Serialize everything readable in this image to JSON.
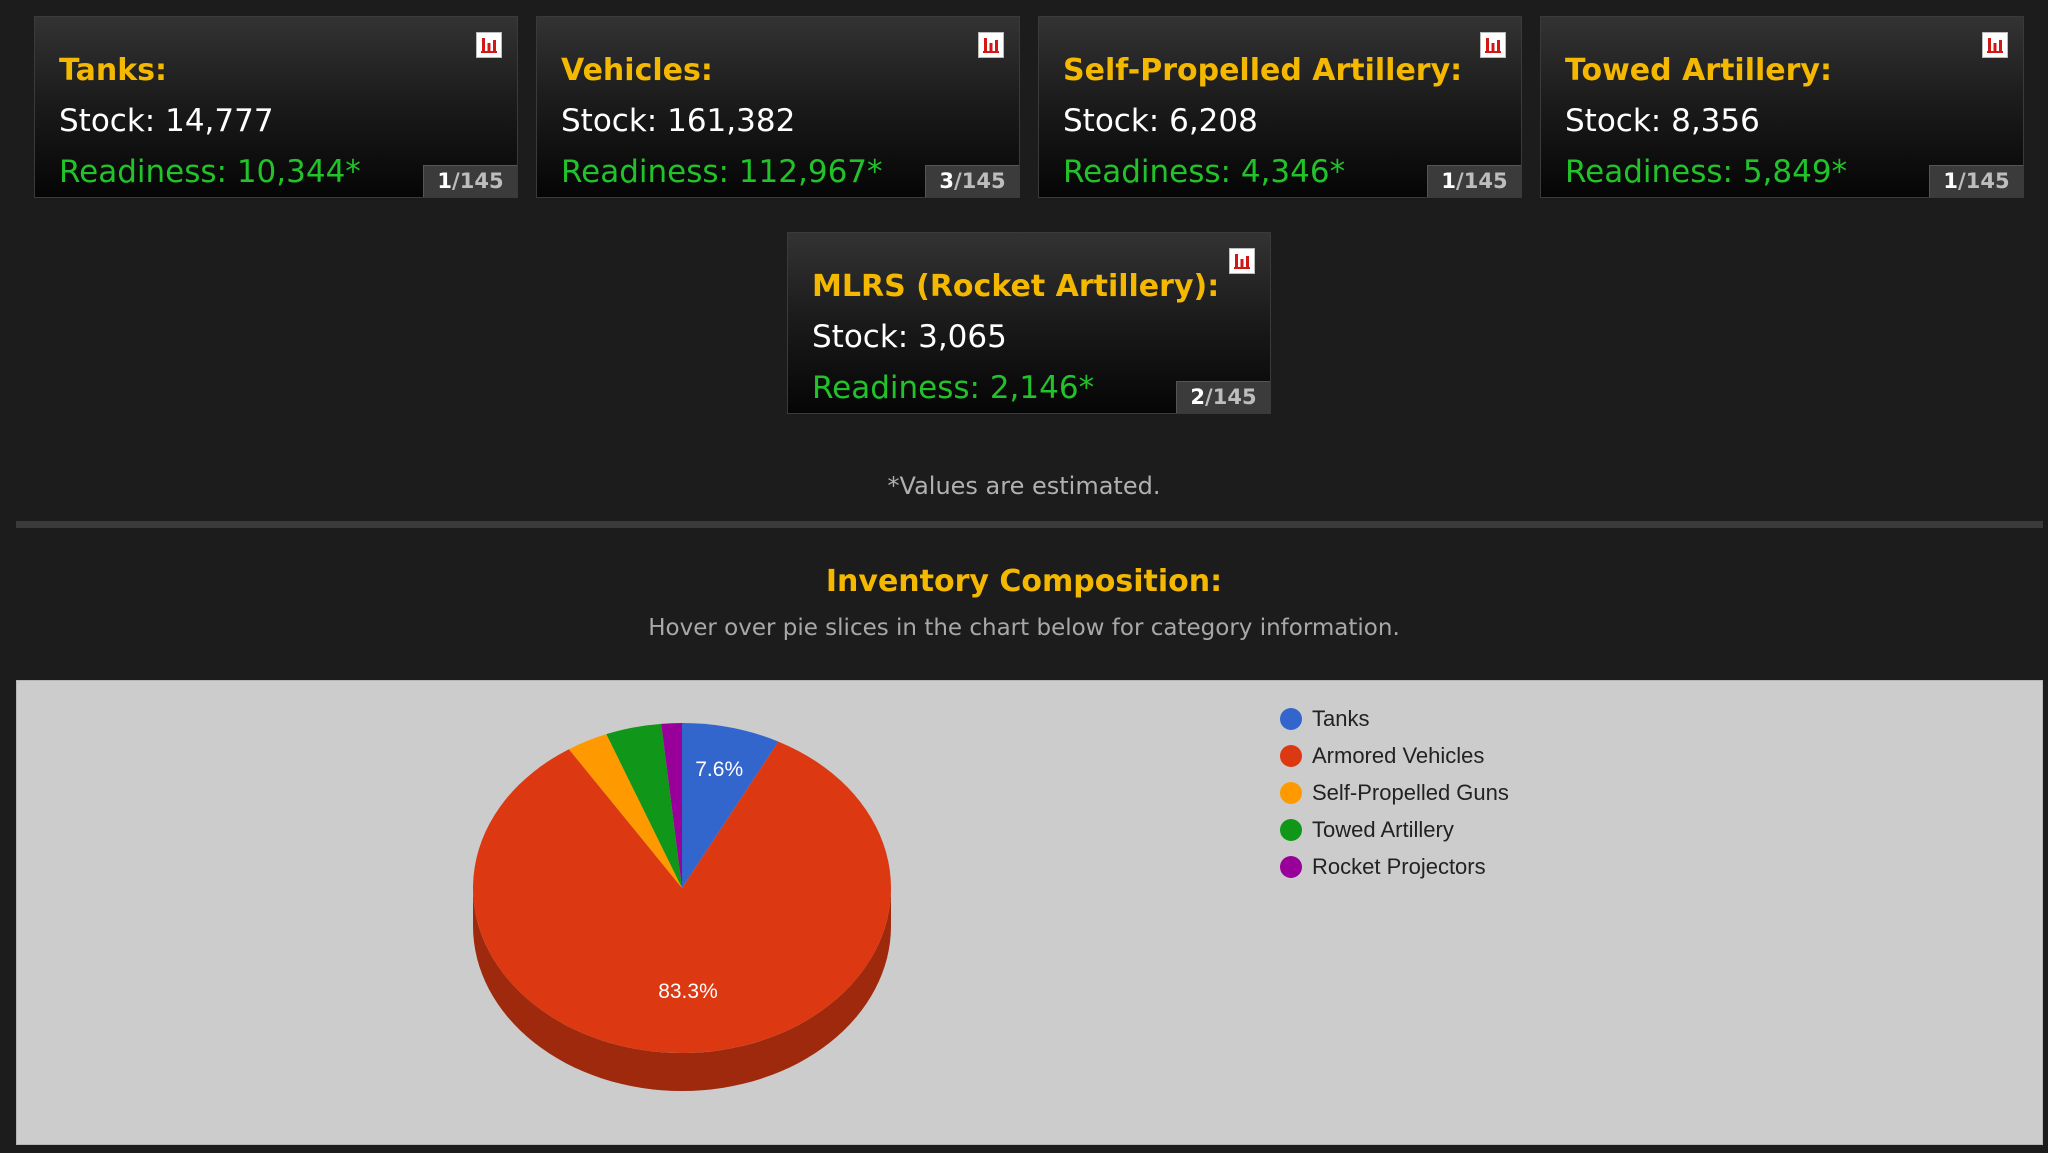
{
  "cards": [
    {
      "title": "Tanks:",
      "stock": "Stock: 14,777",
      "readiness": "Readiness: 10,344*",
      "rank_num": "1",
      "rank_total": "/145"
    },
    {
      "title": "Vehicles:",
      "stock": "Stock: 161,382",
      "readiness": "Readiness: 112,967*",
      "rank_num": "3",
      "rank_total": "/145"
    },
    {
      "title": "Self-Propelled Artillery:",
      "stock": "Stock: 6,208",
      "readiness": "Readiness: 4,346*",
      "rank_num": "1",
      "rank_total": "/145"
    },
    {
      "title": "Towed Artillery:",
      "stock": "Stock: 8,356",
      "readiness": "Readiness: 5,849*",
      "rank_num": "1",
      "rank_total": "/145"
    },
    {
      "title": "MLRS (Rocket Artillery):",
      "stock": "Stock: 3,065",
      "readiness": "Readiness: 2,146*",
      "rank_num": "2",
      "rank_total": "/145"
    }
  ],
  "note": "*Values are estimated.",
  "section": {
    "title": "Inventory Composition:",
    "subtitle": "Hover over pie slices in the chart below for category information."
  },
  "icons": {
    "card_chart": "bar-chart-icon"
  },
  "colors": {
    "accent": "#f5b800",
    "readiness": "#22c22a"
  },
  "chart_data": {
    "type": "pie",
    "title": "",
    "categories": [
      "Tanks",
      "Armored Vehicles",
      "Self-Propelled Guns",
      "Towed Artillery",
      "Rocket Projectors"
    ],
    "values": [
      14777,
      161382,
      6208,
      8356,
      3065
    ],
    "colors": [
      "#3366cc",
      "#dc3912",
      "#ff9900",
      "#109618",
      "#990099"
    ],
    "data_labels": [
      "7.6%",
      "83.3%",
      "",
      "",
      ""
    ],
    "legend_position": "right"
  }
}
